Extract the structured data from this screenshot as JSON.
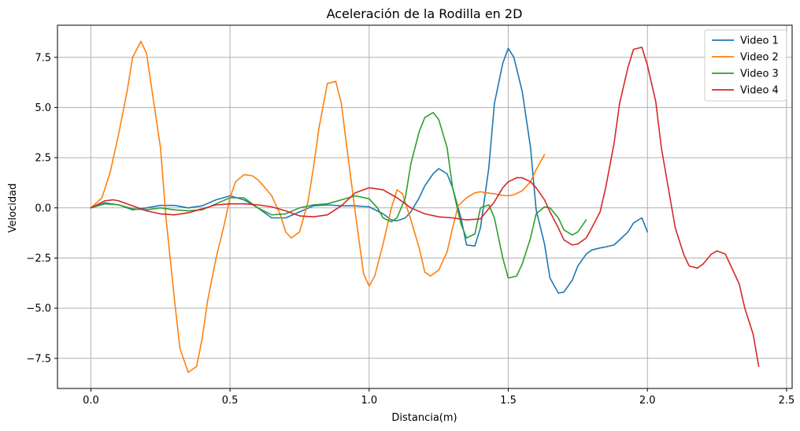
{
  "chart_data": {
    "type": "line",
    "title": "Aceleración de la Rodilla en 2D",
    "xlabel": "Distancia(m)",
    "ylabel": "Velocidad",
    "xlim": [
      -0.12,
      2.52
    ],
    "ylim": [
      -9.0,
      9.1
    ],
    "xticks": [
      0.0,
      0.5,
      1.0,
      1.5,
      2.0,
      2.5
    ],
    "xtick_labels": [
      "0.0",
      "0.5",
      "1.0",
      "1.5",
      "2.0",
      "2.5"
    ],
    "yticks": [
      -7.5,
      -5.0,
      -2.5,
      0.0,
      2.5,
      5.0,
      7.5
    ],
    "ytick_labels": [
      "−7.5",
      "−5.0",
      "−2.5",
      "0.0",
      "2.5",
      "5.0",
      "7.5"
    ],
    "grid": true,
    "legend_position": "top-right",
    "series": [
      {
        "name": "Video 1",
        "color": "#1f77b4",
        "x": [
          0.0,
          0.05,
          0.1,
          0.15,
          0.2,
          0.25,
          0.3,
          0.35,
          0.4,
          0.45,
          0.5,
          0.55,
          0.6,
          0.65,
          0.7,
          0.75,
          0.8,
          0.85,
          0.9,
          0.95,
          1.0,
          1.05,
          1.08,
          1.1,
          1.13,
          1.15,
          1.18,
          1.2,
          1.23,
          1.25,
          1.28,
          1.3,
          1.33,
          1.35,
          1.38,
          1.4,
          1.43,
          1.45,
          1.48,
          1.5,
          1.52,
          1.55,
          1.58,
          1.6,
          1.63,
          1.65,
          1.68,
          1.7,
          1.73,
          1.75,
          1.78,
          1.8,
          1.83,
          1.85,
          1.88,
          1.9,
          1.93,
          1.95,
          1.98,
          2.0
        ],
        "values": [
          0.0,
          0.25,
          0.15,
          -0.1,
          0.0,
          0.12,
          0.12,
          0.0,
          0.1,
          0.4,
          0.6,
          0.4,
          0.0,
          -0.5,
          -0.5,
          -0.2,
          0.1,
          0.15,
          0.1,
          0.1,
          0.05,
          -0.3,
          -0.6,
          -0.65,
          -0.5,
          -0.2,
          0.5,
          1.1,
          1.7,
          1.95,
          1.7,
          1.0,
          -0.5,
          -1.85,
          -1.9,
          -1.0,
          2.0,
          5.2,
          7.2,
          7.95,
          7.5,
          5.8,
          3.0,
          -0.1,
          -1.8,
          -3.5,
          -4.25,
          -4.2,
          -3.6,
          -2.9,
          -2.3,
          -2.1,
          -2.0,
          -1.95,
          -1.85,
          -1.6,
          -1.2,
          -0.75,
          -0.5,
          -1.2
        ]
      },
      {
        "name": "Video 2",
        "color": "#ff7f0e",
        "x": [
          0.0,
          0.04,
          0.07,
          0.1,
          0.13,
          0.15,
          0.18,
          0.2,
          0.22,
          0.25,
          0.27,
          0.3,
          0.32,
          0.35,
          0.38,
          0.4,
          0.42,
          0.45,
          0.48,
          0.5,
          0.52,
          0.55,
          0.58,
          0.6,
          0.62,
          0.65,
          0.68,
          0.7,
          0.72,
          0.75,
          0.78,
          0.8,
          0.82,
          0.85,
          0.88,
          0.9,
          0.92,
          0.95,
          0.98,
          1.0,
          1.02,
          1.05,
          1.08,
          1.1,
          1.12,
          1.15,
          1.18,
          1.2,
          1.22,
          1.25,
          1.28,
          1.3,
          1.32,
          1.35,
          1.38,
          1.4,
          1.42,
          1.45,
          1.48,
          1.5,
          1.52,
          1.55,
          1.58,
          1.6,
          1.63
        ],
        "values": [
          0.0,
          0.5,
          1.8,
          3.7,
          5.8,
          7.5,
          8.3,
          7.7,
          5.8,
          3.0,
          -0.5,
          -4.5,
          -7.0,
          -8.2,
          -7.9,
          -6.5,
          -4.6,
          -2.5,
          -0.8,
          0.5,
          1.3,
          1.65,
          1.6,
          1.4,
          1.1,
          0.6,
          -0.3,
          -1.2,
          -1.5,
          -1.2,
          0.3,
          2.0,
          4.0,
          6.2,
          6.3,
          5.2,
          3.0,
          -0.2,
          -3.3,
          -3.9,
          -3.4,
          -1.8,
          0.0,
          0.9,
          0.7,
          -0.6,
          -2.0,
          -3.2,
          -3.4,
          -3.1,
          -2.2,
          -1.0,
          0.1,
          0.5,
          0.75,
          0.8,
          0.75,
          0.7,
          0.62,
          0.6,
          0.65,
          0.85,
          1.3,
          1.9,
          2.65
        ]
      },
      {
        "name": "Video 3",
        "color": "#2ca02c",
        "x": [
          0.0,
          0.05,
          0.1,
          0.15,
          0.2,
          0.25,
          0.3,
          0.35,
          0.4,
          0.45,
          0.5,
          0.55,
          0.6,
          0.65,
          0.7,
          0.75,
          0.8,
          0.85,
          0.9,
          0.95,
          1.0,
          1.03,
          1.05,
          1.08,
          1.1,
          1.13,
          1.15,
          1.18,
          1.2,
          1.23,
          1.25,
          1.28,
          1.3,
          1.33,
          1.35,
          1.38,
          1.4,
          1.43,
          1.45,
          1.48,
          1.5,
          1.53,
          1.55,
          1.58,
          1.6,
          1.63,
          1.65,
          1.68,
          1.7,
          1.73,
          1.75,
          1.78
        ],
        "values": [
          0.0,
          0.2,
          0.15,
          -0.05,
          -0.1,
          0.0,
          -0.1,
          -0.15,
          -0.1,
          0.2,
          0.5,
          0.5,
          0.0,
          -0.35,
          -0.3,
          0.0,
          0.15,
          0.2,
          0.4,
          0.6,
          0.45,
          0.0,
          -0.5,
          -0.7,
          -0.5,
          0.5,
          2.2,
          3.8,
          4.5,
          4.75,
          4.4,
          3.0,
          1.0,
          -0.8,
          -1.5,
          -1.3,
          0.0,
          0.15,
          -0.5,
          -2.5,
          -3.5,
          -3.4,
          -2.8,
          -1.5,
          -0.3,
          0.05,
          0.0,
          -0.5,
          -1.1,
          -1.35,
          -1.2,
          -0.6
        ]
      },
      {
        "name": "Video 4",
        "color": "#d62728",
        "x": [
          0.0,
          0.05,
          0.08,
          0.1,
          0.15,
          0.2,
          0.25,
          0.3,
          0.35,
          0.4,
          0.45,
          0.5,
          0.55,
          0.6,
          0.65,
          0.7,
          0.75,
          0.8,
          0.85,
          0.9,
          0.95,
          1.0,
          1.05,
          1.1,
          1.15,
          1.2,
          1.25,
          1.3,
          1.35,
          1.4,
          1.45,
          1.48,
          1.5,
          1.53,
          1.55,
          1.58,
          1.6,
          1.63,
          1.65,
          1.68,
          1.7,
          1.73,
          1.75,
          1.78,
          1.8,
          1.83,
          1.85,
          1.88,
          1.9,
          1.93,
          1.95,
          1.98,
          2.0,
          2.03,
          2.05,
          2.08,
          2.1,
          2.13,
          2.15,
          2.18,
          2.2,
          2.23,
          2.25,
          2.28,
          2.3,
          2.33,
          2.35,
          2.38,
          2.4
        ],
        "values": [
          0.0,
          0.35,
          0.4,
          0.35,
          0.1,
          -0.15,
          -0.3,
          -0.35,
          -0.25,
          -0.05,
          0.15,
          0.2,
          0.2,
          0.15,
          0.05,
          -0.15,
          -0.4,
          -0.45,
          -0.35,
          0.1,
          0.75,
          1.0,
          0.9,
          0.5,
          0.0,
          -0.3,
          -0.45,
          -0.5,
          -0.6,
          -0.55,
          0.3,
          1.0,
          1.3,
          1.5,
          1.5,
          1.3,
          1.0,
          0.4,
          -0.2,
          -1.0,
          -1.6,
          -1.85,
          -1.8,
          -1.5,
          -1.0,
          -0.2,
          1.0,
          3.2,
          5.2,
          7.0,
          7.9,
          8.0,
          7.1,
          5.3,
          3.0,
          0.6,
          -1.0,
          -2.3,
          -2.9,
          -3.0,
          -2.8,
          -2.3,
          -2.15,
          -2.3,
          -2.9,
          -3.8,
          -5.0,
          -6.3,
          -7.9
        ]
      }
    ]
  }
}
